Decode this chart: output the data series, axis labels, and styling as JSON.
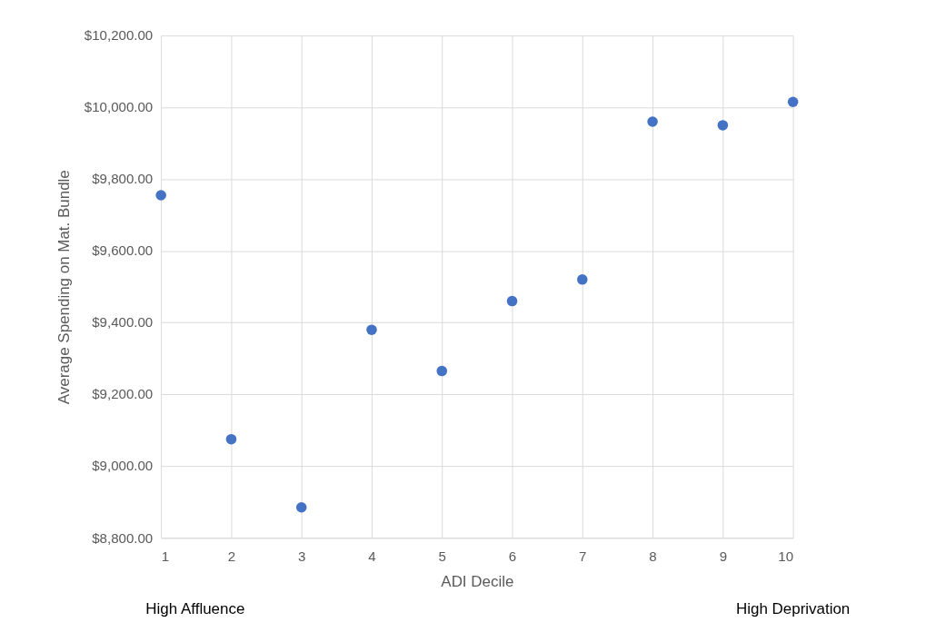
{
  "chart_data": {
    "type": "scatter",
    "xlabel": "ADI Decile",
    "ylabel": "Average Spending on Mat. Bundle",
    "x": [
      1,
      2,
      3,
      4,
      5,
      6,
      7,
      8,
      9,
      10
    ],
    "series": [
      {
        "color": "#4472c4",
        "values": [
          9755,
          9075,
          8885,
          9380,
          9265,
          9460,
          9520,
          9960,
          9950,
          10015
        ]
      }
    ],
    "xlim": [
      1,
      10
    ],
    "xticks": [
      1,
      2,
      3,
      4,
      5,
      6,
      7,
      8,
      9,
      10
    ],
    "ylim": [
      8800,
      10200
    ],
    "yticks": [
      {
        "value": 8800,
        "label": "$8,800.00"
      },
      {
        "value": 9000,
        "label": "$9,000.00"
      },
      {
        "value": 9200,
        "label": "$9,200.00"
      },
      {
        "value": 9400,
        "label": "$9,400.00"
      },
      {
        "value": 9600,
        "label": "$9,600.00"
      },
      {
        "value": 9800,
        "label": "$9,800.00"
      },
      {
        "value": 10000,
        "label": "$10,000.00"
      },
      {
        "value": 10200,
        "label": "$10,200.00"
      }
    ],
    "grid": true,
    "marker": "circle",
    "annotations": [
      "High Affluence",
      "High Deprivation"
    ]
  }
}
